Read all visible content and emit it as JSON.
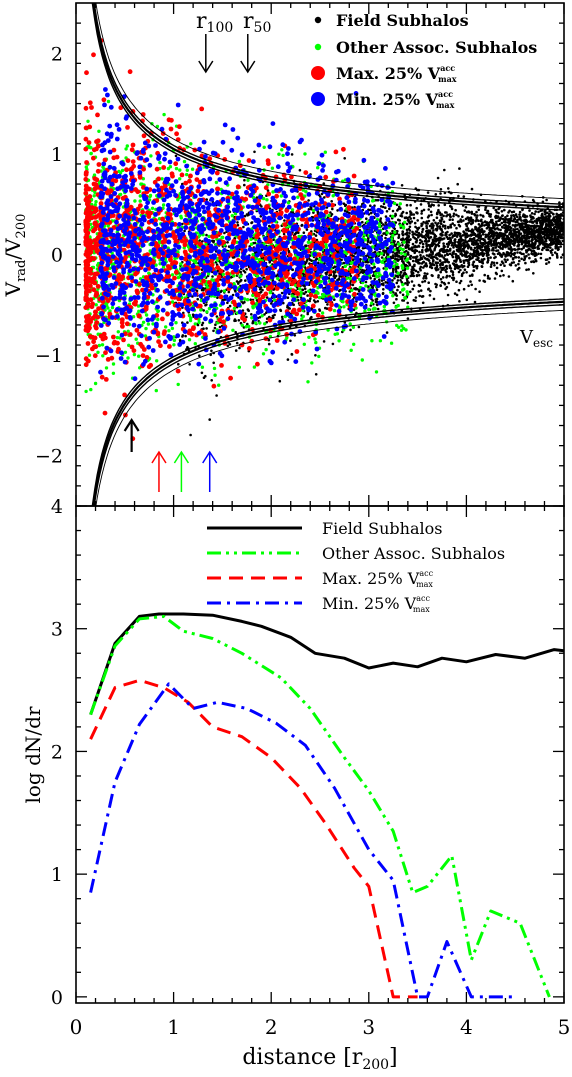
{
  "chart_data": [
    {
      "type": "scatter",
      "ylabel_main": "V",
      "ylabel_sub1": "rad",
      "ylabel_slash": "/V",
      "ylabel_sub2": "200",
      "xlim": [
        0,
        5
      ],
      "ylim": [
        -2.5,
        2.5
      ],
      "yticks": [
        "2",
        "1",
        "0",
        "−1",
        "−2"
      ],
      "ytick_values": [
        2,
        1,
        0,
        -1,
        -2
      ],
      "legend_placement": "top-right",
      "legend": [
        {
          "label": "Field Subhalos",
          "color": "#000000"
        },
        {
          "label": "Other Assoc. Subhalos",
          "color": "#00ff00"
        },
        {
          "label": "Max. 25% V",
          "sup": "acc",
          "sub": "max",
          "color": "#ff0000"
        },
        {
          "label": "Min. 25% V",
          "sup": "acc",
          "sub": "max",
          "color": "#0000ff"
        }
      ],
      "escape_label": {
        "main": "V",
        "sub": "esc"
      },
      "radius_markers": [
        {
          "main": "r",
          "sub": "100",
          "x": 1.33
        },
        {
          "main": "r",
          "sub": "50",
          "x": 1.76
        }
      ],
      "median_arrows": [
        {
          "x": 0.57,
          "color": "#000000"
        },
        {
          "x": 0.85,
          "color": "#ff0000"
        },
        {
          "x": 1.08,
          "color": "#00ff00"
        },
        {
          "x": 1.37,
          "color": "#0000ff"
        }
      ],
      "escape_curve": {
        "vesc_at_1": 1.05,
        "form": "v = a / sqrt(x)",
        "samples": [
          [
            0.25,
            2.1
          ],
          [
            0.5,
            1.48
          ],
          [
            1,
            1.05
          ],
          [
            2,
            0.74
          ],
          [
            5,
            0.47
          ]
        ]
      }
    },
    {
      "type": "line",
      "ylabel": "log dN/dr",
      "xlabel": "distance [r",
      "xlabel_sub": "200",
      "xlabel_close": "]",
      "xlim": [
        0,
        5
      ],
      "ylim": [
        -0.05,
        4
      ],
      "xticks": [
        "0",
        "1",
        "2",
        "3",
        "4",
        "5"
      ],
      "xtick_values": [
        0,
        1,
        2,
        3,
        4,
        5
      ],
      "yticks": [
        "0",
        "1",
        "2",
        "3",
        "4"
      ],
      "ytick_values": [
        0,
        1,
        2,
        3,
        4
      ],
      "legend_placement": "top-right",
      "series": [
        {
          "name": "Field Subhalos",
          "color": "#000000",
          "dash": "solid",
          "points": [
            [
              0.15,
              2.3
            ],
            [
              0.4,
              2.88
            ],
            [
              0.65,
              3.1
            ],
            [
              0.85,
              3.12
            ],
            [
              1.1,
              3.12
            ],
            [
              1.4,
              3.11
            ],
            [
              1.7,
              3.06
            ],
            [
              1.9,
              3.02
            ],
            [
              2.2,
              2.93
            ],
            [
              2.45,
              2.8
            ],
            [
              2.75,
              2.76
            ],
            [
              3.0,
              2.68
            ],
            [
              3.25,
              2.72
            ],
            [
              3.5,
              2.69
            ],
            [
              3.75,
              2.76
            ],
            [
              4.0,
              2.73
            ],
            [
              4.3,
              2.79
            ],
            [
              4.6,
              2.76
            ],
            [
              4.9,
              2.83
            ],
            [
              5.0,
              2.82
            ]
          ]
        },
        {
          "name": "Other Assoc. Subhalos",
          "color": "#00ff00",
          "dash": "dashdotdot",
          "points": [
            [
              0.15,
              2.3
            ],
            [
              0.4,
              2.86
            ],
            [
              0.65,
              3.08
            ],
            [
              0.9,
              3.1
            ],
            [
              1.1,
              2.98
            ],
            [
              1.4,
              2.92
            ],
            [
              1.7,
              2.8
            ],
            [
              2.1,
              2.6
            ],
            [
              2.4,
              2.35
            ],
            [
              2.75,
              1.95
            ],
            [
              3.0,
              1.68
            ],
            [
              3.25,
              1.35
            ],
            [
              3.45,
              0.85
            ],
            [
              3.6,
              0.9
            ],
            [
              3.85,
              1.15
            ],
            [
              4.05,
              0.3
            ],
            [
              4.25,
              0.7
            ],
            [
              4.55,
              0.6
            ],
            [
              4.85,
              0.0
            ]
          ]
        },
        {
          "name": "Max. 25% V",
          "color": "#ff0000",
          "dash": "dashed",
          "points": [
            [
              0.15,
              2.1
            ],
            [
              0.4,
              2.52
            ],
            [
              0.65,
              2.58
            ],
            [
              0.9,
              2.52
            ],
            [
              1.15,
              2.4
            ],
            [
              1.4,
              2.2
            ],
            [
              1.7,
              2.12
            ],
            [
              2.0,
              1.95
            ],
            [
              2.3,
              1.7
            ],
            [
              2.55,
              1.42
            ],
            [
              2.85,
              1.05
            ],
            [
              3.0,
              0.9
            ],
            [
              3.25,
              0.0
            ],
            [
              3.5,
              0.0
            ]
          ]
        },
        {
          "name": "Min. 25% V",
          "color": "#0000ff",
          "dash": "dashdot",
          "points": [
            [
              0.15,
              0.85
            ],
            [
              0.4,
              1.75
            ],
            [
              0.65,
              2.22
            ],
            [
              0.95,
              2.55
            ],
            [
              1.2,
              2.35
            ],
            [
              1.45,
              2.4
            ],
            [
              1.75,
              2.35
            ],
            [
              2.05,
              2.23
            ],
            [
              2.35,
              2.05
            ],
            [
              2.65,
              1.7
            ],
            [
              3.0,
              1.2
            ],
            [
              3.25,
              0.95
            ],
            [
              3.5,
              0.0
            ],
            [
              3.6,
              0.0
            ],
            [
              3.8,
              0.45
            ],
            [
              4.05,
              0.0
            ],
            [
              4.25,
              0.0
            ],
            [
              4.5,
              0.0
            ]
          ]
        }
      ]
    }
  ]
}
